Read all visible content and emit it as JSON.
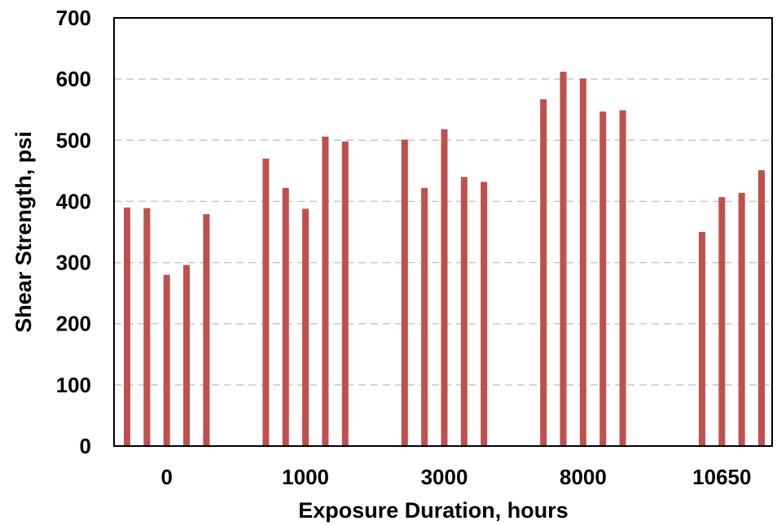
{
  "chart_data": {
    "type": "bar",
    "title": "",
    "xlabel": "Exposure Duration, hours",
    "ylabel": "Shear Strength, psi",
    "ylim": [
      0,
      700
    ],
    "yticks": [
      0,
      100,
      200,
      300,
      400,
      500,
      600,
      700
    ],
    "grid": "horizontal-dashed",
    "bar_color": "#c0504d",
    "groups": [
      {
        "label": "0",
        "values": [
          390,
          389,
          280,
          296,
          379
        ]
      },
      {
        "label": "1000",
        "values": [
          470,
          422,
          388,
          506,
          498
        ]
      },
      {
        "label": "3000",
        "values": [
          501,
          422,
          518,
          440,
          432
        ]
      },
      {
        "label": "8000",
        "values": [
          567,
          612,
          601,
          547,
          549
        ]
      },
      {
        "label": "10650",
        "values": [
          350,
          407,
          414,
          451
        ]
      }
    ]
  }
}
